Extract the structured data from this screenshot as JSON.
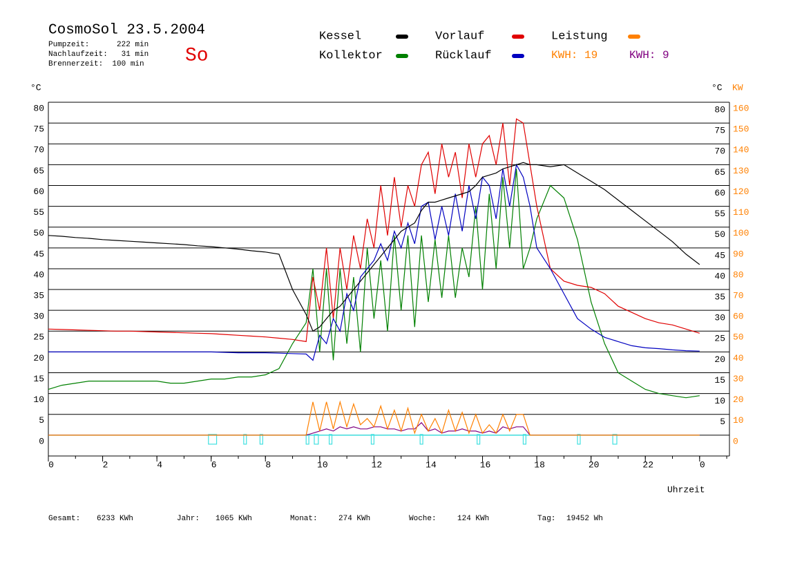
{
  "chart_data": {
    "type": "line",
    "title": "CosmoSol 23.5.2004",
    "info": [
      "Pumpzeit:      222 min",
      "Nachlaufzeit:   31 min",
      "Brennerzeit:  100 min"
    ],
    "day": "So",
    "y_unit": "°C",
    "y_unit_right": "°C",
    "y2_unit": "KW",
    "x_label": "Uhrzeit",
    "kwh_labels": [
      {
        "text": "KWH: 19",
        "color": "#ff8000"
      },
      {
        "text": "KWH: 9",
        "color": "#800080"
      }
    ],
    "footer": [
      [
        "Gesamt:",
        "6233 KWh"
      ],
      [
        "Jahr:",
        "1065 KWh"
      ],
      [
        "Monat:",
        "274 KWh"
      ],
      [
        "Woche:",
        "124 KWh"
      ],
      [
        "Tag:",
        "19452 Wh"
      ]
    ],
    "xlim": [
      0,
      25.1
    ],
    "xticks": [
      0,
      2,
      4,
      6,
      8,
      10,
      12,
      14,
      16,
      18,
      20,
      22,
      {
        "value": 24,
        "label": "0"
      }
    ],
    "ylim": [
      -5,
      80
    ],
    "yticks": [
      0,
      5,
      10,
      15,
      20,
      25,
      30,
      35,
      40,
      45,
      50,
      55,
      60,
      65,
      70,
      75,
      80
    ],
    "y2lim": [
      -10,
      160
    ],
    "y2ticks": [
      0,
      10,
      20,
      30,
      40,
      50,
      60,
      70,
      80,
      90,
      100,
      110,
      120,
      130,
      140,
      150,
      160
    ],
    "grid": true,
    "x": [
      0,
      0.5,
      1,
      1.5,
      2,
      2.5,
      3,
      3.5,
      4,
      4.5,
      5,
      5.5,
      6,
      6.5,
      7,
      7.5,
      8,
      8.5,
      9,
      9.5,
      9.75,
      10,
      10.25,
      10.5,
      10.75,
      11,
      11.25,
      11.5,
      11.75,
      12,
      12.25,
      12.5,
      12.75,
      13,
      13.25,
      13.5,
      13.75,
      14,
      14.25,
      14.5,
      14.75,
      15,
      15.25,
      15.5,
      15.75,
      16,
      16.25,
      16.5,
      16.75,
      17,
      17.25,
      17.5,
      17.75,
      18,
      18.5,
      19,
      19.5,
      20,
      20.5,
      21,
      21.5,
      22,
      22.5,
      23,
      23.5,
      24
    ],
    "series": [
      {
        "name": "Kessel",
        "color": "#000000",
        "values": [
          48,
          47.8,
          47.5,
          47.3,
          47,
          46.8,
          46.6,
          46.4,
          46.2,
          46,
          45.8,
          45.5,
          45.3,
          45,
          44.7,
          44.3,
          44,
          43.5,
          35,
          29,
          25,
          26,
          28,
          30,
          31,
          33,
          35,
          37,
          39,
          41,
          43,
          45,
          47,
          49,
          50,
          51,
          54,
          56,
          56,
          56.5,
          57,
          57.5,
          58,
          58.5,
          60,
          62,
          62.5,
          63,
          64,
          64.5,
          65,
          65.5,
          65,
          65,
          64.5,
          65,
          63,
          61,
          59,
          56.5,
          54,
          51.5,
          49,
          46.5,
          43.5,
          41
        ]
      },
      {
        "name": "Kollektor",
        "color": "#008000",
        "values": [
          11,
          12,
          12.5,
          13,
          13,
          13,
          13,
          13,
          13,
          12.5,
          12.5,
          13,
          13.5,
          13.5,
          14,
          14,
          14.5,
          16,
          22,
          27,
          40,
          20,
          40,
          18,
          40,
          22,
          38,
          20,
          45,
          28,
          42,
          25,
          48,
          30,
          48,
          26,
          48,
          32,
          47,
          33,
          48,
          33,
          45,
          38,
          55,
          35,
          58,
          40,
          62,
          45,
          64,
          40,
          45,
          52,
          60,
          57,
          47,
          32,
          22,
          15,
          13,
          11,
          10,
          9.5,
          9,
          9.5
        ]
      },
      {
        "name": "Vorlauf",
        "color": "#e00000",
        "values": [
          25.5,
          25.4,
          25.3,
          25.2,
          25.1,
          25,
          25,
          24.9,
          24.8,
          24.7,
          24.6,
          24.5,
          24.4,
          24.2,
          24,
          23.8,
          23.6,
          23.3,
          23,
          22.5,
          38,
          30,
          45,
          28,
          45,
          35,
          48,
          40,
          52,
          45,
          60,
          48,
          62,
          50,
          60,
          55,
          65,
          68,
          58,
          70,
          62,
          68,
          57,
          70,
          62,
          70,
          72,
          65,
          75,
          60,
          76,
          75,
          65,
          55,
          40,
          37,
          36,
          35.5,
          34,
          31,
          29.5,
          28,
          27,
          26.5,
          25.5,
          24.5
        ]
      },
      {
        "name": "Rücklauf",
        "color": "#0000c0",
        "values": [
          20,
          20,
          20,
          20,
          20,
          20,
          20,
          20,
          20,
          20,
          20,
          20,
          20,
          19.9,
          19.8,
          19.8,
          19.8,
          19.7,
          19.6,
          19.5,
          18,
          24,
          22,
          28,
          25,
          34,
          30,
          38,
          40,
          42,
          46,
          42,
          49,
          45,
          51,
          46,
          55,
          56,
          47,
          55,
          48,
          58,
          49,
          60,
          52,
          62,
          60,
          52,
          64,
          55,
          65,
          62,
          55,
          45,
          40,
          34,
          28,
          25.5,
          23.5,
          22.5,
          21.5,
          21,
          20.8,
          20.5,
          20.3,
          20.2
        ]
      },
      {
        "name": "Leistung",
        "color": "#ff8000",
        "axis": "y2",
        "values": [
          0,
          0,
          0,
          0,
          0,
          0,
          0,
          0,
          0,
          0,
          0,
          0,
          0,
          0,
          0,
          0,
          0,
          0,
          0,
          0,
          16,
          2,
          16,
          3,
          16,
          4,
          15,
          5,
          8,
          4,
          14,
          3,
          12,
          2,
          13,
          1,
          10,
          2,
          8,
          1,
          12,
          2,
          11,
          1,
          10,
          1,
          5,
          1,
          10,
          2,
          10,
          10,
          0,
          0,
          0,
          0,
          0,
          0,
          0,
          0,
          0,
          0,
          0,
          0,
          0,
          0
        ]
      },
      {
        "color": "#800080",
        "axis": "y2",
        "values": [
          0,
          0,
          0,
          0,
          0,
          0,
          0,
          0,
          0,
          0,
          0,
          0,
          0,
          0,
          0,
          0,
          0,
          0,
          0,
          0,
          1,
          2,
          3,
          2,
          4,
          3,
          4,
          3,
          3,
          4,
          4,
          3,
          3,
          2,
          3,
          3,
          6,
          2,
          3,
          1,
          2,
          2,
          3,
          2,
          2,
          1,
          2,
          1,
          4,
          3,
          4,
          4,
          0,
          0,
          0,
          0,
          0,
          0,
          0,
          0,
          0,
          0,
          0,
          0,
          0,
          0
        ]
      }
    ]
  }
}
